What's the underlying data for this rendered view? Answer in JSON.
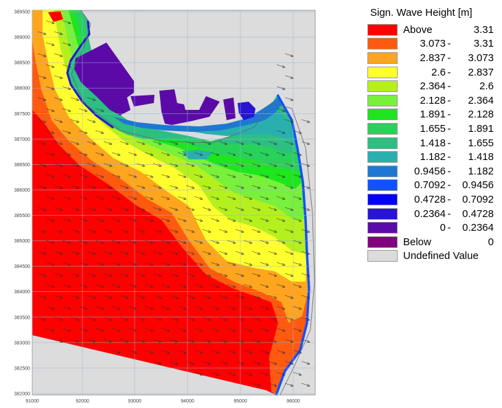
{
  "map": {
    "x_ticks": [
      "91000",
      "92000",
      "93000",
      "94000",
      "95000",
      "96000"
    ],
    "y_ticks": [
      "389500",
      "389000",
      "388500",
      "388000",
      "387500",
      "387000",
      "386500",
      "386000",
      "385500",
      "385000",
      "384500",
      "384000",
      "383500",
      "383000",
      "382500",
      "382000"
    ],
    "background_color": "#dcdcdc",
    "land_color": "#5b0aa8"
  },
  "legend": {
    "title": "Sign. Wave Height [m]",
    "above": {
      "label": "Above",
      "value": "3.31",
      "color": "#ff0000"
    },
    "classes": [
      {
        "lo": "3.073",
        "hi": "3.31",
        "color": "#ff5a10"
      },
      {
        "lo": "2.837",
        "hi": "3.073",
        "color": "#ffa51e"
      },
      {
        "lo": "2.6",
        "hi": "2.837",
        "color": "#ffff30"
      },
      {
        "lo": "2.364",
        "hi": "2.6",
        "color": "#b4f01e"
      },
      {
        "lo": "2.128",
        "hi": "2.364",
        "color": "#78f03c"
      },
      {
        "lo": "1.891",
        "hi": "2.128",
        "color": "#1ee61e"
      },
      {
        "lo": "1.655",
        "hi": "1.891",
        "color": "#28d25a"
      },
      {
        "lo": "1.418",
        "hi": "1.655",
        "color": "#2dbf82"
      },
      {
        "lo": "1.182",
        "hi": "1.418",
        "color": "#2aafaf"
      },
      {
        "lo": "0.9456",
        "hi": "1.182",
        "color": "#1e78d2"
      },
      {
        "lo": "0.7092",
        "hi": "0.9456",
        "color": "#1450ff"
      },
      {
        "lo": "0.4728",
        "hi": "0.7092",
        "color": "#0000ff"
      },
      {
        "lo": "0.2364",
        "hi": "0.4728",
        "color": "#2814d2"
      },
      {
        "lo": "0",
        "hi": "0.2364",
        "color": "#5a0aaa"
      }
    ],
    "below": {
      "label": "Below",
      "value": "0",
      "color": "#80007f"
    },
    "undefined": {
      "label": "Undefined Value",
      "color": "#dcdcdc"
    }
  }
}
